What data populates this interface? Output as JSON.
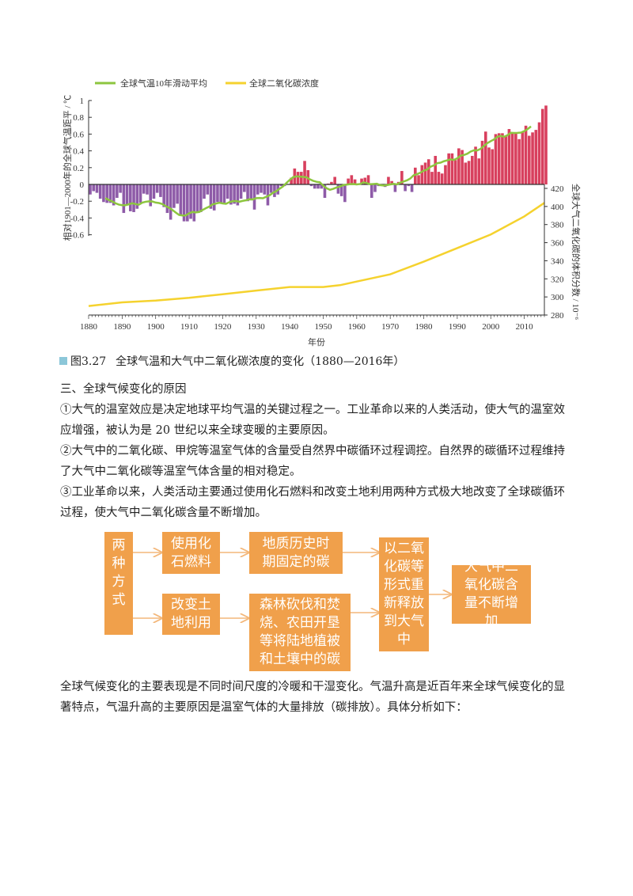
{
  "chart_data": {
    "type": "bar+line",
    "legend": {
      "position": "top-left",
      "items": [
        {
          "name": "全球气温10年滑动平均",
          "color": "#8dc63f"
        },
        {
          "name": "全球二氧化碳浓度",
          "color": "#f5d22e"
        }
      ]
    },
    "xlabel": "年份",
    "x_ticks": [
      "1880",
      "1890",
      "1900",
      "1910",
      "1920",
      "1930",
      "1940",
      "1950",
      "1960",
      "1970",
      "1980",
      "1990",
      "2000",
      "2010"
    ],
    "xlim": [
      1880,
      2016
    ],
    "ylabel_left": "相对1901—2000年的全球气温距平 / ℃",
    "ylim_left": [
      -0.6,
      1
    ],
    "y_ticks_left": [
      "1",
      "0.8",
      "0.6",
      "0.4",
      "0.2",
      "0",
      "-0.2",
      "-0.4",
      "-0.6"
    ],
    "ylabel_right": "全球大气二氧化碳的体积分数 / 10⁻⁶",
    "ylim_right": [
      280,
      420
    ],
    "y_ticks_right": [
      "420",
      "400",
      "380",
      "360",
      "340",
      "320",
      "300",
      "280"
    ],
    "colors": {
      "negative_bar": "#8e5ba8",
      "positive_bar": "#d8405e"
    },
    "temperature_anomaly": {
      "start_year": 1880,
      "values": [
        -0.12,
        -0.08,
        -0.1,
        -0.17,
        -0.21,
        -0.22,
        -0.22,
        -0.25,
        -0.16,
        -0.1,
        -0.34,
        -0.25,
        -0.32,
        -0.33,
        -0.29,
        -0.22,
        -0.11,
        -0.12,
        -0.26,
        -0.17,
        -0.1,
        -0.15,
        -0.27,
        -0.34,
        -0.42,
        -0.28,
        -0.23,
        -0.37,
        -0.44,
        -0.44,
        -0.41,
        -0.44,
        -0.33,
        -0.33,
        -0.17,
        -0.12,
        -0.29,
        -0.31,
        -0.21,
        -0.22,
        -0.22,
        -0.17,
        -0.24,
        -0.23,
        -0.25,
        -0.17,
        -0.09,
        -0.2,
        -0.19,
        -0.3,
        -0.12,
        -0.1,
        -0.12,
        -0.25,
        -0.1,
        -0.15,
        -0.12,
        -0.02,
        -0.02,
        0.0,
        0.08,
        0.19,
        0.15,
        0.15,
        0.28,
        0.17,
        -0.02,
        -0.05,
        -0.05,
        -0.05,
        -0.16,
        0.01,
        0.03,
        0.09,
        -0.11,
        -0.14,
        -0.21,
        0.07,
        0.11,
        0.06,
        0.01,
        0.07,
        0.08,
        0.11,
        -0.16,
        -0.09,
        -0.02,
        -0.01,
        -0.03,
        0.09,
        0.04,
        -0.09,
        0.03,
        0.16,
        -0.08,
        -0.02,
        -0.09,
        0.2,
        0.11,
        0.23,
        0.26,
        0.3,
        0.15,
        0.34,
        0.15,
        0.13,
        0.23,
        0.37,
        0.37,
        0.29,
        0.43,
        0.41,
        0.26,
        0.28,
        0.34,
        0.45,
        0.31,
        0.52,
        0.63,
        0.44,
        0.42,
        0.6,
        0.61,
        0.61,
        0.57,
        0.66,
        0.62,
        0.61,
        0.54,
        0.63,
        0.7,
        0.58,
        0.62,
        0.65,
        0.74,
        0.9,
        0.94
      ]
    },
    "co2_concentration": {
      "years": [
        1880,
        1890,
        1900,
        1910,
        1920,
        1930,
        1940,
        1950,
        1955,
        1960,
        1970,
        1980,
        1990,
        2000,
        2010,
        2016
      ],
      "values": [
        290,
        294,
        296,
        299,
        303,
        307,
        311,
        311,
        313,
        317,
        325,
        339,
        354,
        369,
        389,
        404
      ]
    }
  },
  "caption": {
    "label": "图3.27",
    "text": "全球气温和大气中二氧化碳浓度的变化（1880—2016年）"
  },
  "section": {
    "heading": "三、全球气候变化的原因",
    "lines": [
      "①大气的温室效应是决定地球平均气温的关键过程之一。工业革命以来的人类活动，使大气的温室效",
      "应增强，被认为是 20 世纪以来全球变暖的主要原因。",
      "②大气中的二氧化碳、甲烷等温室气体的含量受自然界中碳循环过程调控。自然界的碳循环过程维持",
      "了大气中二氧化碳等温室气体含量的相对稳定。",
      "③工业革命以来，人类活动主要通过使用化石燃料和改变土地利用两种方式极大地改变了全球碳循环",
      "过程，使大气中二氧化碳含量不断增加。"
    ]
  },
  "flow": {
    "color": "#f0a04b",
    "ways": "两种方式",
    "fossil": "使用化石燃料",
    "geo_carbon": "地质历史时期固定的碳",
    "land": "改变土地利用",
    "land_carbon": "森林砍伐和焚烧、农田开垦等将陆地植被和土壤中的碳",
    "release": "以二氧化碳等形式重新释放到大气中",
    "result": "大气中二氧化碳含量不断增加"
  },
  "closing": [
    "全球气候变化的主要表现是不同时间尺度的冷暖和干湿变化。气温升高是近百年来全球气候变化的显",
    "著特点，气温升高的主要原因是温室气体的大量排放（碳排放）。具体分析如下："
  ]
}
